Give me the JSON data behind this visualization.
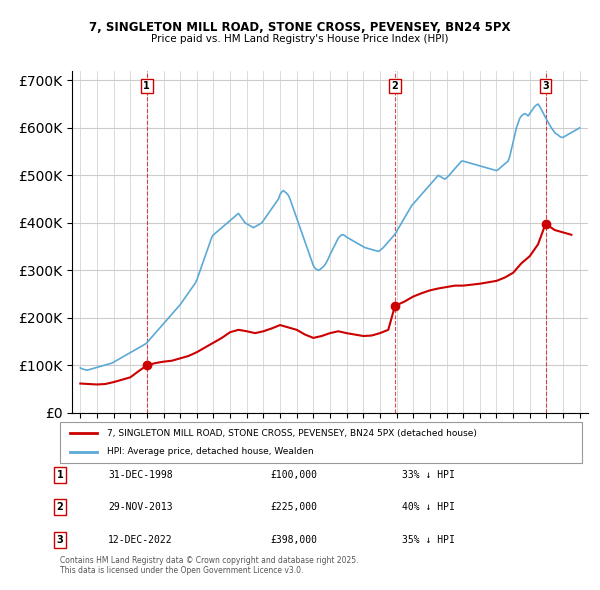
{
  "title": "7, SINGLETON MILL ROAD, STONE CROSS, PEVENSEY, BN24 5PX",
  "subtitle": "Price paid vs. HM Land Registry's House Price Index (HPI)",
  "legend_property": "7, SINGLETON MILL ROAD, STONE CROSS, PEVENSEY, BN24 5PX (detached house)",
  "legend_hpi": "HPI: Average price, detached house, Wealden",
  "footnote": "Contains HM Land Registry data © Crown copyright and database right 2025.\nThis data is licensed under the Open Government Licence v3.0.",
  "ylabel": "",
  "sales": [
    {
      "num": 1,
      "date": "31-DEC-1998",
      "price": 100000,
      "pct": "33%",
      "year": 1998.99
    },
    {
      "num": 2,
      "date": "29-NOV-2013",
      "price": 225000,
      "pct": "40%",
      "year": 2013.9
    },
    {
      "num": 3,
      "date": "12-DEC-2022",
      "price": 398000,
      "pct": "35%",
      "year": 2022.95
    }
  ],
  "hpi_color": "#5aa9d6",
  "property_color": "#cc0000",
  "marker_box_color": "#cc0000",
  "background_color": "#ffffff",
  "grid_color": "#cccccc",
  "ylim": [
    0,
    720000
  ],
  "yticks": [
    0,
    100000,
    200000,
    300000,
    400000,
    500000,
    600000,
    700000
  ],
  "xlim_start": 1994.5,
  "xlim_end": 2025.5,
  "hpi_data": {
    "years": [
      1995.0,
      1995.1,
      1995.2,
      1995.3,
      1995.4,
      1995.5,
      1995.6,
      1995.7,
      1995.8,
      1995.9,
      1996.0,
      1996.1,
      1996.2,
      1996.3,
      1996.4,
      1996.5,
      1996.6,
      1996.7,
      1996.8,
      1996.9,
      1997.0,
      1997.1,
      1997.2,
      1997.3,
      1997.4,
      1997.5,
      1997.6,
      1997.7,
      1997.8,
      1997.9,
      1998.0,
      1998.1,
      1998.2,
      1998.3,
      1998.4,
      1998.5,
      1998.6,
      1998.7,
      1998.8,
      1998.9,
      1999.0,
      1999.1,
      1999.2,
      1999.3,
      1999.4,
      1999.5,
      1999.6,
      1999.7,
      1999.8,
      1999.9,
      2000.0,
      2000.1,
      2000.2,
      2000.3,
      2000.4,
      2000.5,
      2000.6,
      2000.7,
      2000.8,
      2000.9,
      2001.0,
      2001.1,
      2001.2,
      2001.3,
      2001.4,
      2001.5,
      2001.6,
      2001.7,
      2001.8,
      2001.9,
      2002.0,
      2002.1,
      2002.2,
      2002.3,
      2002.4,
      2002.5,
      2002.6,
      2002.7,
      2002.8,
      2002.9,
      2003.0,
      2003.1,
      2003.2,
      2003.3,
      2003.4,
      2003.5,
      2003.6,
      2003.7,
      2003.8,
      2003.9,
      2004.0,
      2004.1,
      2004.2,
      2004.3,
      2004.4,
      2004.5,
      2004.6,
      2004.7,
      2004.8,
      2004.9,
      2005.0,
      2005.1,
      2005.2,
      2005.3,
      2005.4,
      2005.5,
      2005.6,
      2005.7,
      2005.8,
      2005.9,
      2006.0,
      2006.1,
      2006.2,
      2006.3,
      2006.4,
      2006.5,
      2006.6,
      2006.7,
      2006.8,
      2006.9,
      2007.0,
      2007.1,
      2007.2,
      2007.3,
      2007.4,
      2007.5,
      2007.6,
      2007.7,
      2007.8,
      2007.9,
      2008.0,
      2008.1,
      2008.2,
      2008.3,
      2008.4,
      2008.5,
      2008.6,
      2008.7,
      2008.8,
      2008.9,
      2009.0,
      2009.1,
      2009.2,
      2009.3,
      2009.4,
      2009.5,
      2009.6,
      2009.7,
      2009.8,
      2009.9,
      2010.0,
      2010.1,
      2010.2,
      2010.3,
      2010.4,
      2010.5,
      2010.6,
      2010.7,
      2010.8,
      2010.9,
      2011.0,
      2011.1,
      2011.2,
      2011.3,
      2011.4,
      2011.5,
      2011.6,
      2011.7,
      2011.8,
      2011.9,
      2012.0,
      2012.1,
      2012.2,
      2012.3,
      2012.4,
      2012.5,
      2012.6,
      2012.7,
      2012.8,
      2012.9,
      2013.0,
      2013.1,
      2013.2,
      2013.3,
      2013.4,
      2013.5,
      2013.6,
      2013.7,
      2013.8,
      2013.9,
      2014.0,
      2014.1,
      2014.2,
      2014.3,
      2014.4,
      2014.5,
      2014.6,
      2014.7,
      2014.8,
      2014.9,
      2015.0,
      2015.1,
      2015.2,
      2015.3,
      2015.4,
      2015.5,
      2015.6,
      2015.7,
      2015.8,
      2015.9,
      2016.0,
      2016.1,
      2016.2,
      2016.3,
      2016.4,
      2016.5,
      2016.6,
      2016.7,
      2016.8,
      2016.9,
      2017.0,
      2017.1,
      2017.2,
      2017.3,
      2017.4,
      2017.5,
      2017.6,
      2017.7,
      2017.8,
      2017.9,
      2018.0,
      2018.1,
      2018.2,
      2018.3,
      2018.4,
      2018.5,
      2018.6,
      2018.7,
      2018.8,
      2018.9,
      2019.0,
      2019.1,
      2019.2,
      2019.3,
      2019.4,
      2019.5,
      2019.6,
      2019.7,
      2019.8,
      2019.9,
      2020.0,
      2020.1,
      2020.2,
      2020.3,
      2020.4,
      2020.5,
      2020.6,
      2020.7,
      2020.8,
      2020.9,
      2021.0,
      2021.1,
      2021.2,
      2021.3,
      2021.4,
      2021.5,
      2021.6,
      2021.7,
      2021.8,
      2021.9,
      2022.0,
      2022.1,
      2022.2,
      2022.3,
      2022.4,
      2022.5,
      2022.6,
      2022.7,
      2022.8,
      2022.9,
      2023.0,
      2023.1,
      2023.2,
      2023.3,
      2023.4,
      2023.5,
      2023.6,
      2023.7,
      2023.8,
      2023.9,
      2024.0,
      2024.1,
      2024.2,
      2024.3,
      2024.4,
      2024.5,
      2024.6,
      2024.7,
      2024.8,
      2024.9,
      2025.0
    ],
    "values": [
      95000,
      93000,
      92000,
      91000,
      90000,
      91000,
      92000,
      93000,
      94000,
      95000,
      96000,
      97000,
      98000,
      99000,
      100000,
      101000,
      102000,
      103000,
      104000,
      105000,
      107000,
      109000,
      111000,
      113000,
      115000,
      117000,
      119000,
      121000,
      123000,
      125000,
      127000,
      129000,
      131000,
      133000,
      135000,
      137000,
      139000,
      141000,
      143000,
      145000,
      148000,
      152000,
      156000,
      160000,
      164000,
      168000,
      172000,
      176000,
      180000,
      184000,
      188000,
      192000,
      196000,
      200000,
      204000,
      208000,
      212000,
      216000,
      220000,
      224000,
      228000,
      233000,
      238000,
      243000,
      248000,
      253000,
      258000,
      263000,
      268000,
      273000,
      280000,
      290000,
      300000,
      310000,
      320000,
      330000,
      340000,
      350000,
      360000,
      370000,
      375000,
      378000,
      381000,
      384000,
      387000,
      390000,
      393000,
      396000,
      399000,
      402000,
      405000,
      408000,
      411000,
      414000,
      417000,
      420000,
      415000,
      410000,
      405000,
      400000,
      398000,
      396000,
      394000,
      392000,
      390000,
      392000,
      394000,
      396000,
      398000,
      400000,
      405000,
      410000,
      415000,
      420000,
      425000,
      430000,
      435000,
      440000,
      445000,
      450000,
      460000,
      465000,
      468000,
      465000,
      462000,
      458000,
      450000,
      440000,
      430000,
      420000,
      410000,
      400000,
      390000,
      380000,
      370000,
      360000,
      350000,
      340000,
      330000,
      320000,
      310000,
      305000,
      302000,
      300000,
      302000,
      305000,
      308000,
      312000,
      318000,
      325000,
      333000,
      340000,
      347000,
      354000,
      361000,
      368000,
      372000,
      375000,
      375000,
      373000,
      370000,
      368000,
      366000,
      364000,
      362000,
      360000,
      358000,
      356000,
      354000,
      352000,
      350000,
      348000,
      347000,
      346000,
      345000,
      344000,
      343000,
      342000,
      341000,
      340000,
      342000,
      345000,
      348000,
      352000,
      356000,
      360000,
      364000,
      368000,
      372000,
      376000,
      382000,
      388000,
      394000,
      400000,
      406000,
      412000,
      418000,
      424000,
      430000,
      436000,
      440000,
      444000,
      448000,
      452000,
      456000,
      460000,
      464000,
      468000,
      472000,
      476000,
      480000,
      484000,
      488000,
      492000,
      496000,
      500000,
      498000,
      496000,
      494000,
      492000,
      495000,
      498000,
      502000,
      506000,
      510000,
      514000,
      518000,
      522000,
      526000,
      530000,
      530000,
      529000,
      528000,
      527000,
      526000,
      525000,
      524000,
      523000,
      522000,
      521000,
      520000,
      519000,
      518000,
      517000,
      516000,
      515000,
      514000,
      513000,
      512000,
      511000,
      510000,
      512000,
      515000,
      518000,
      521000,
      524000,
      527000,
      530000,
      540000,
      555000,
      570000,
      585000,
      600000,
      610000,
      620000,
      625000,
      628000,
      630000,
      628000,
      625000,
      630000,
      635000,
      640000,
      645000,
      648000,
      650000,
      645000,
      638000,
      632000,
      625000,
      618000,
      612000,
      606000,
      600000,
      595000,
      590000,
      587000,
      585000,
      582000,
      580000,
      580000,
      582000,
      584000,
      586000,
      588000,
      590000,
      592000,
      594000,
      596000,
      598000,
      600000
    ]
  },
  "property_data": {
    "years": [
      1995.0,
      1995.5,
      1996.0,
      1996.5,
      1997.0,
      1997.5,
      1998.0,
      1998.5,
      1998.99,
      1999.5,
      2000.0,
      2000.5,
      2001.0,
      2001.5,
      2002.0,
      2002.5,
      2003.0,
      2003.5,
      2004.0,
      2004.5,
      2005.0,
      2005.5,
      2006.0,
      2006.5,
      2007.0,
      2007.5,
      2008.0,
      2008.5,
      2009.0,
      2009.5,
      2010.0,
      2010.5,
      2011.0,
      2011.5,
      2012.0,
      2012.5,
      2013.0,
      2013.5,
      2013.9,
      2014.5,
      2015.0,
      2015.5,
      2016.0,
      2016.5,
      2017.0,
      2017.5,
      2018.0,
      2018.5,
      2019.0,
      2019.5,
      2020.0,
      2020.5,
      2021.0,
      2021.5,
      2022.0,
      2022.5,
      2022.95,
      2023.5,
      2024.0,
      2024.5
    ],
    "values": [
      62000,
      61000,
      60000,
      61000,
      65000,
      70000,
      75000,
      88000,
      100000,
      105000,
      108000,
      110000,
      115000,
      120000,
      128000,
      138000,
      148000,
      158000,
      170000,
      175000,
      172000,
      168000,
      172000,
      178000,
      185000,
      180000,
      175000,
      165000,
      158000,
      162000,
      168000,
      172000,
      168000,
      165000,
      162000,
      163000,
      168000,
      175000,
      225000,
      235000,
      245000,
      252000,
      258000,
      262000,
      265000,
      268000,
      268000,
      270000,
      272000,
      275000,
      278000,
      285000,
      295000,
      315000,
      330000,
      355000,
      398000,
      385000,
      380000,
      375000
    ]
  }
}
